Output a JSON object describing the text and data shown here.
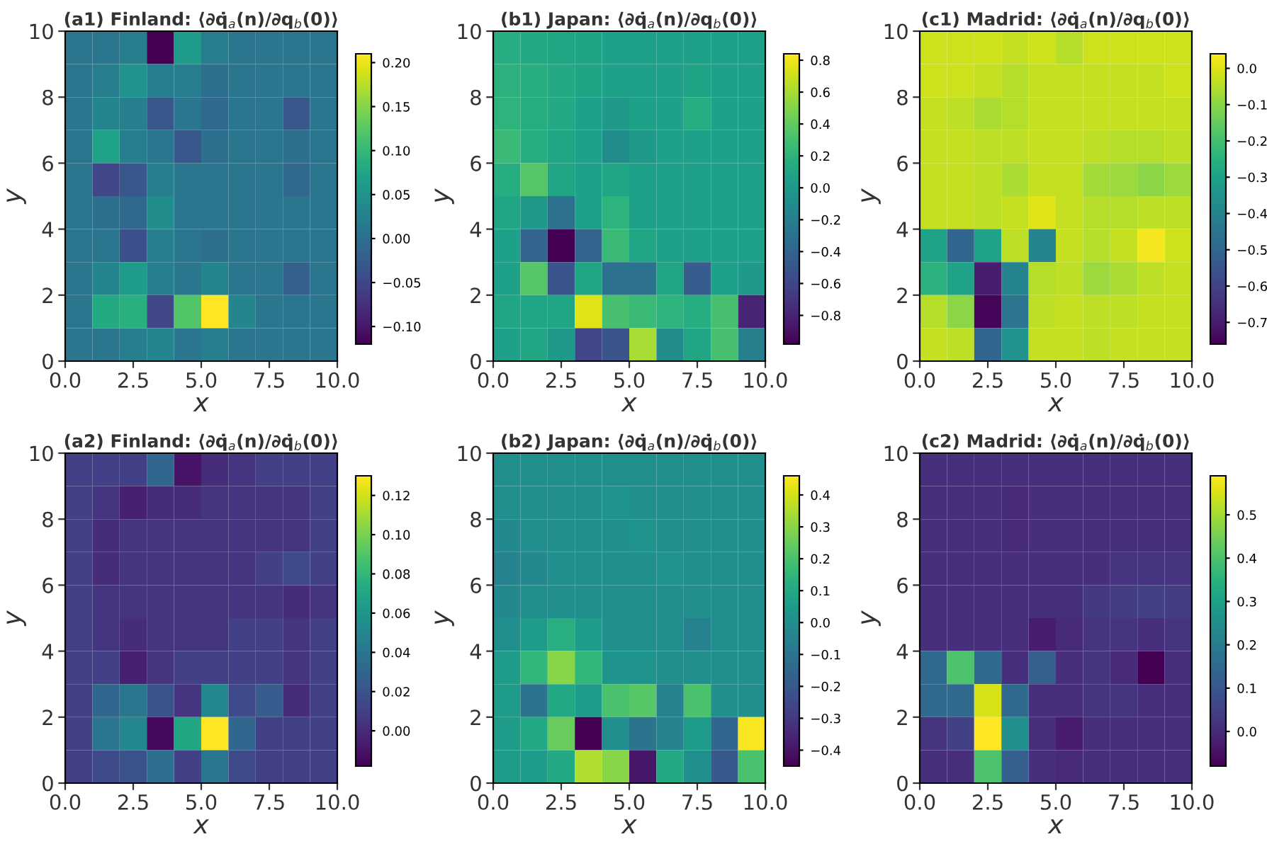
{
  "chart_data": [
    {
      "type": "heatmap",
      "title": "(a1) Finland: ⟨∂q̇$_{a}$(n)/∂q$_{b}$(0)⟩",
      "xlabel": "x",
      "ylabel": "y",
      "xlim": [
        0,
        10
      ],
      "ylim": [
        0,
        10
      ],
      "xticks": [
        {
          "value": 0,
          "label": "0.0"
        },
        {
          "value": 2.5,
          "label": "2.5"
        },
        {
          "value": 5,
          "label": "5.0"
        },
        {
          "value": 7.5,
          "label": "7.5"
        },
        {
          "value": 10,
          "label": "10.0"
        }
      ],
      "yticks": [
        0,
        2,
        4,
        6,
        8,
        10
      ],
      "clim": [
        -0.12,
        0.21
      ],
      "cticks": [
        {
          "value": -0.1,
          "label": "−0.10"
        },
        {
          "value": -0.05,
          "label": "−0.05"
        },
        {
          "value": 0,
          "label": "0.00"
        },
        {
          "value": 0.05,
          "label": "0.05"
        },
        {
          "value": 0.1,
          "label": "0.10"
        },
        {
          "value": 0.15,
          "label": "0.15"
        },
        {
          "value": 0.2,
          "label": "0.20"
        }
      ],
      "cells": [
        [
          0.01,
          0.01,
          0.02,
          -0.12,
          0.06,
          0.02,
          0.01,
          0.01,
          0.01,
          0.01
        ],
        [
          0.01,
          0.02,
          0.05,
          0.02,
          0.02,
          0.0,
          0.01,
          0.01,
          0.01,
          0.01
        ],
        [
          0.01,
          0.03,
          0.02,
          -0.03,
          0.01,
          -0.01,
          0.01,
          0.01,
          -0.03,
          0.01
        ],
        [
          0.01,
          0.07,
          0.02,
          0.01,
          -0.03,
          0.0,
          0.01,
          0.01,
          0.0,
          0.01
        ],
        [
          0.01,
          -0.05,
          -0.03,
          0.02,
          0.01,
          0.01,
          0.01,
          0.01,
          -0.01,
          0.01
        ],
        [
          0.01,
          0.0,
          -0.01,
          0.04,
          0.01,
          0.01,
          0.01,
          0.01,
          0.01,
          0.01
        ],
        [
          0.01,
          0.01,
          -0.04,
          0.02,
          0.01,
          0.0,
          0.01,
          0.01,
          0.01,
          0.01
        ],
        [
          0.01,
          0.03,
          0.06,
          0.02,
          0.01,
          0.03,
          0.01,
          0.01,
          -0.02,
          0.01
        ],
        [
          0.01,
          0.08,
          0.09,
          -0.05,
          0.12,
          0.21,
          0.03,
          0.01,
          0.01,
          0.01
        ],
        [
          0.01,
          0.01,
          0.02,
          0.03,
          0.01,
          0.02,
          0.01,
          0.01,
          0.01,
          0.01
        ]
      ]
    },
    {
      "type": "heatmap",
      "title": "(b1) Japan: ⟨∂q̇$_{a}$(n)/∂q$_{b}$(0)⟩",
      "xlabel": "x",
      "ylabel": "y",
      "xlim": [
        0,
        10
      ],
      "ylim": [
        0,
        10
      ],
      "xticks": [
        {
          "value": 0,
          "label": "0.0"
        },
        {
          "value": 2.5,
          "label": "2.5"
        },
        {
          "value": 5,
          "label": "5.0"
        },
        {
          "value": 7.5,
          "label": "7.5"
        },
        {
          "value": 10,
          "label": "10.0"
        }
      ],
      "yticks": [
        0,
        2,
        4,
        6,
        8,
        10
      ],
      "clim": [
        -0.98,
        0.84
      ],
      "cticks": [
        {
          "value": -0.8,
          "label": "−0.8"
        },
        {
          "value": -0.6,
          "label": "−0.6"
        },
        {
          "value": -0.4,
          "label": "−0.4"
        },
        {
          "value": -0.2,
          "label": "−0.2"
        },
        {
          "value": 0,
          "label": "0.0"
        },
        {
          "value": 0.2,
          "label": "0.2"
        },
        {
          "value": 0.4,
          "label": "0.4"
        },
        {
          "value": 0.6,
          "label": "0.6"
        },
        {
          "value": 0.8,
          "label": "0.8"
        }
      ],
      "cells": [
        [
          0.15,
          0.12,
          0.1,
          0.08,
          0.05,
          0.05,
          0.05,
          0.05,
          0.05,
          0.05
        ],
        [
          0.18,
          0.15,
          0.12,
          0.08,
          0.05,
          0.05,
          0.05,
          0.08,
          0.05,
          0.05
        ],
        [
          0.2,
          0.15,
          0.12,
          0.05,
          0.0,
          0.05,
          0.05,
          0.15,
          0.05,
          0.05
        ],
        [
          0.25,
          0.15,
          0.1,
          0.05,
          -0.1,
          0.0,
          0.05,
          0.05,
          0.05,
          0.05
        ],
        [
          0.15,
          0.35,
          0.1,
          0.05,
          0.1,
          0.05,
          0.05,
          0.05,
          0.05,
          0.05
        ],
        [
          0.1,
          0.0,
          -0.3,
          0.05,
          0.2,
          0.05,
          0.05,
          0.05,
          0.05,
          0.05
        ],
        [
          0.05,
          -0.4,
          -0.98,
          -0.4,
          0.25,
          0.1,
          0.05,
          0.05,
          0.05,
          0.05
        ],
        [
          0.05,
          0.35,
          -0.5,
          0.1,
          -0.3,
          -0.3,
          0.1,
          -0.45,
          0.05,
          0.0
        ],
        [
          0.1,
          0.1,
          0.1,
          0.75,
          0.3,
          0.25,
          0.2,
          0.15,
          0.3,
          -0.8
        ],
        [
          0.05,
          0.1,
          0.0,
          -0.6,
          -0.5,
          0.6,
          -0.1,
          0.1,
          0.3,
          -0.2
        ]
      ]
    },
    {
      "type": "heatmap",
      "title": "(c1) Madrid: ⟨∂q̇$_{a}$(n)/∂q$_{b}$(0)⟩",
      "xlabel": "x",
      "ylabel": "y",
      "xlim": [
        0,
        10
      ],
      "ylim": [
        0,
        10
      ],
      "xticks": [
        {
          "value": 0,
          "label": "0.0"
        },
        {
          "value": 2.5,
          "label": "2.5"
        },
        {
          "value": 5,
          "label": "5.0"
        },
        {
          "value": 7.5,
          "label": "7.5"
        },
        {
          "value": 10,
          "label": "10.0"
        }
      ],
      "yticks": [
        0,
        2,
        4,
        6,
        8,
        10
      ],
      "clim": [
        -0.76,
        0.04
      ],
      "cticks": [
        {
          "value": -0.7,
          "label": "−0.7"
        },
        {
          "value": -0.6,
          "label": "−0.6"
        },
        {
          "value": -0.5,
          "label": "−0.5"
        },
        {
          "value": -0.4,
          "label": "−0.4"
        },
        {
          "value": -0.3,
          "label": "−0.3"
        },
        {
          "value": -0.2,
          "label": "−0.2"
        },
        {
          "value": -0.1,
          "label": "−0.1"
        },
        {
          "value": 0,
          "label": "0.0"
        }
      ],
      "cells": [
        [
          -0.02,
          -0.02,
          -0.02,
          -0.03,
          -0.02,
          -0.05,
          -0.02,
          -0.02,
          -0.02,
          -0.02
        ],
        [
          -0.02,
          -0.02,
          -0.03,
          -0.05,
          -0.03,
          -0.03,
          -0.03,
          -0.03,
          -0.03,
          -0.02
        ],
        [
          -0.03,
          -0.04,
          -0.06,
          -0.05,
          -0.03,
          -0.03,
          -0.03,
          -0.03,
          -0.03,
          -0.03
        ],
        [
          -0.03,
          -0.03,
          -0.04,
          -0.04,
          -0.03,
          -0.03,
          -0.04,
          -0.05,
          -0.05,
          -0.04
        ],
        [
          -0.03,
          -0.03,
          -0.04,
          -0.06,
          -0.03,
          -0.03,
          -0.07,
          -0.08,
          -0.1,
          -0.08
        ],
        [
          -0.03,
          -0.03,
          -0.04,
          -0.03,
          0.0,
          -0.03,
          -0.05,
          -0.05,
          -0.04,
          -0.04
        ],
        [
          -0.3,
          -0.5,
          -0.3,
          -0.04,
          -0.4,
          -0.03,
          -0.05,
          -0.03,
          0.03,
          -0.02
        ],
        [
          -0.25,
          -0.3,
          -0.7,
          -0.4,
          -0.05,
          -0.04,
          -0.08,
          -0.06,
          -0.04,
          -0.03
        ],
        [
          -0.05,
          -0.1,
          -0.75,
          -0.45,
          -0.04,
          -0.03,
          -0.04,
          -0.04,
          -0.03,
          -0.03
        ],
        [
          -0.03,
          -0.04,
          -0.5,
          -0.35,
          -0.03,
          -0.03,
          -0.04,
          -0.03,
          -0.03,
          -0.03
        ]
      ]
    },
    {
      "type": "heatmap",
      "title": "(a2) Finland: ⟨∂q̇$_{a}$(n)/∂q̇$_{b}$(0)⟩",
      "xlabel": "x",
      "ylabel": "y",
      "xlim": [
        0,
        10
      ],
      "ylim": [
        0,
        10
      ],
      "xticks": [
        {
          "value": 0,
          "label": "0.0"
        },
        {
          "value": 2.5,
          "label": "2.5"
        },
        {
          "value": 5,
          "label": "5.0"
        },
        {
          "value": 7.5,
          "label": "7.5"
        },
        {
          "value": 10,
          "label": "10.0"
        }
      ],
      "yticks": [
        0,
        2,
        4,
        6,
        8,
        10
      ],
      "clim": [
        -0.018,
        0.13
      ],
      "cticks": [
        {
          "value": 0,
          "label": "0.00"
        },
        {
          "value": 0.02,
          "label": "0.02"
        },
        {
          "value": 0.04,
          "label": "0.04"
        },
        {
          "value": 0.06,
          "label": "0.06"
        },
        {
          "value": 0.08,
          "label": "0.08"
        },
        {
          "value": 0.1,
          "label": "0.10"
        },
        {
          "value": 0.12,
          "label": "0.12"
        }
      ],
      "cells": [
        [
          0.01,
          0.01,
          0.01,
          0.03,
          -0.01,
          0.0,
          0.005,
          0.01,
          0.01,
          0.01
        ],
        [
          0.01,
          0.005,
          -0.005,
          0.0,
          0.0,
          0.005,
          0.005,
          0.005,
          0.005,
          0.01
        ],
        [
          0.01,
          0.0,
          0.005,
          0.005,
          0.005,
          0.005,
          0.005,
          0.005,
          0.005,
          0.01
        ],
        [
          0.01,
          0.0,
          0.005,
          0.005,
          0.005,
          0.005,
          0.005,
          0.01,
          0.015,
          0.01
        ],
        [
          0.01,
          0.005,
          0.005,
          0.005,
          0.005,
          0.005,
          0.005,
          0.005,
          0.0,
          0.005
        ],
        [
          0.01,
          0.005,
          0.0,
          0.005,
          0.005,
          0.005,
          0.01,
          0.01,
          0.005,
          0.01
        ],
        [
          0.01,
          0.01,
          -0.005,
          0.005,
          0.01,
          0.01,
          0.01,
          0.01,
          0.005,
          0.01
        ],
        [
          0.01,
          0.03,
          0.04,
          0.02,
          0.005,
          0.05,
          0.015,
          0.025,
          0.0,
          0.01
        ],
        [
          0.01,
          0.04,
          0.05,
          -0.015,
          0.07,
          0.13,
          0.03,
          0.01,
          0.01,
          0.01
        ],
        [
          0.01,
          0.015,
          0.02,
          0.035,
          0.01,
          0.04,
          0.015,
          0.01,
          0.01,
          0.01
        ]
      ]
    },
    {
      "type": "heatmap",
      "title": "(b2) Japan: ⟨∂q̇$_{a}$(n)/∂q̇$_{b}$(0)⟩",
      "xlabel": "x",
      "ylabel": "y",
      "xlim": [
        0,
        10
      ],
      "ylim": [
        0,
        10
      ],
      "xticks": [
        {
          "value": 0,
          "label": "0.0"
        },
        {
          "value": 2.5,
          "label": "2.5"
        },
        {
          "value": 5,
          "label": "5.0"
        },
        {
          "value": 7.5,
          "label": "7.5"
        },
        {
          "value": 10,
          "label": "10.0"
        }
      ],
      "yticks": [
        0,
        2,
        4,
        6,
        8,
        10
      ],
      "clim": [
        -0.45,
        0.46
      ],
      "cticks": [
        {
          "value": -0.4,
          "label": "−0.4"
        },
        {
          "value": -0.3,
          "label": "−0.3"
        },
        {
          "value": -0.2,
          "label": "−0.2"
        },
        {
          "value": -0.1,
          "label": "−0.1"
        },
        {
          "value": 0,
          "label": "0.0"
        },
        {
          "value": 0.1,
          "label": "0.1"
        },
        {
          "value": 0.2,
          "label": "0.2"
        },
        {
          "value": 0.3,
          "label": "0.3"
        },
        {
          "value": 0.4,
          "label": "0.4"
        }
      ],
      "cells": [
        [
          0.0,
          0.0,
          0.0,
          0.0,
          0.0,
          0.0,
          0.0,
          0.0,
          0.0,
          0.0
        ],
        [
          0.0,
          0.0,
          0.0,
          0.0,
          0.02,
          0.0,
          0.0,
          0.0,
          0.0,
          0.0
        ],
        [
          -0.02,
          0.0,
          0.0,
          0.0,
          0.0,
          0.02,
          0.0,
          0.0,
          0.0,
          0.0
        ],
        [
          -0.05,
          -0.02,
          0.0,
          0.0,
          0.0,
          0.0,
          0.02,
          0.0,
          0.0,
          0.0
        ],
        [
          -0.02,
          0.0,
          0.0,
          0.0,
          0.0,
          0.0,
          0.0,
          0.0,
          0.0,
          0.0
        ],
        [
          0.0,
          0.05,
          0.12,
          0.05,
          0.0,
          0.0,
          0.0,
          -0.05,
          0.0,
          0.0
        ],
        [
          0.05,
          0.15,
          0.3,
          0.15,
          0.02,
          0.02,
          0.0,
          0.0,
          0.0,
          0.0
        ],
        [
          0.05,
          -0.1,
          0.1,
          0.05,
          0.2,
          0.22,
          -0.05,
          0.2,
          0.0,
          0.0
        ],
        [
          0.05,
          0.1,
          0.25,
          -0.45,
          0.0,
          -0.1,
          -0.05,
          0.05,
          -0.15,
          0.45
        ],
        [
          0.05,
          0.05,
          0.1,
          0.35,
          0.3,
          -0.4,
          0.1,
          0.0,
          -0.2,
          0.2
        ]
      ]
    },
    {
      "type": "heatmap",
      "title": "(c2) Madrid: ⟨∂q̇$_{a}$(n)/∂q̇$_{b}$(0)⟩",
      "xlabel": "x",
      "ylabel": "y",
      "xlim": [
        0,
        10
      ],
      "ylim": [
        0,
        10
      ],
      "xticks": [
        {
          "value": 0,
          "label": "0.0"
        },
        {
          "value": 2.5,
          "label": "2.5"
        },
        {
          "value": 5,
          "label": "5.0"
        },
        {
          "value": 7.5,
          "label": "7.5"
        },
        {
          "value": 10,
          "label": "10.0"
        }
      ],
      "yticks": [
        0,
        2,
        4,
        6,
        8,
        10
      ],
      "clim": [
        -0.08,
        0.59
      ],
      "cticks": [
        {
          "value": 0,
          "label": "0.0"
        },
        {
          "value": 0.1,
          "label": "0.1"
        },
        {
          "value": 0.2,
          "label": "0.2"
        },
        {
          "value": 0.3,
          "label": "0.3"
        },
        {
          "value": 0.4,
          "label": "0.4"
        },
        {
          "value": 0.5,
          "label": "0.5"
        }
      ],
      "cells": [
        [
          0.01,
          0.01,
          0.01,
          0.01,
          0.01,
          0.01,
          0.01,
          0.01,
          0.01,
          0.01
        ],
        [
          0.01,
          0.01,
          0.01,
          0.0,
          0.01,
          0.01,
          0.01,
          0.01,
          0.01,
          0.01
        ],
        [
          0.01,
          0.01,
          0.01,
          0.0,
          0.01,
          0.01,
          0.01,
          0.01,
          0.01,
          0.01
        ],
        [
          0.01,
          0.01,
          0.01,
          0.01,
          0.01,
          0.01,
          0.01,
          0.02,
          0.02,
          0.02
        ],
        [
          0.01,
          0.01,
          0.01,
          0.01,
          0.01,
          0.01,
          0.03,
          0.04,
          0.05,
          0.04
        ],
        [
          0.01,
          0.01,
          0.01,
          0.01,
          -0.03,
          0.0,
          0.02,
          0.02,
          0.01,
          0.02
        ],
        [
          0.15,
          0.4,
          0.15,
          0.01,
          0.12,
          0.01,
          0.02,
          0.0,
          -0.08,
          0.01
        ],
        [
          0.15,
          0.15,
          0.55,
          0.15,
          0.01,
          0.01,
          0.02,
          0.02,
          0.01,
          0.01
        ],
        [
          0.02,
          0.05,
          0.59,
          0.25,
          0.01,
          -0.03,
          0.01,
          0.01,
          0.01,
          0.01
        ],
        [
          0.01,
          0.01,
          0.4,
          0.12,
          0.01,
          0.0,
          0.01,
          0.01,
          0.01,
          0.01
        ]
      ]
    }
  ]
}
